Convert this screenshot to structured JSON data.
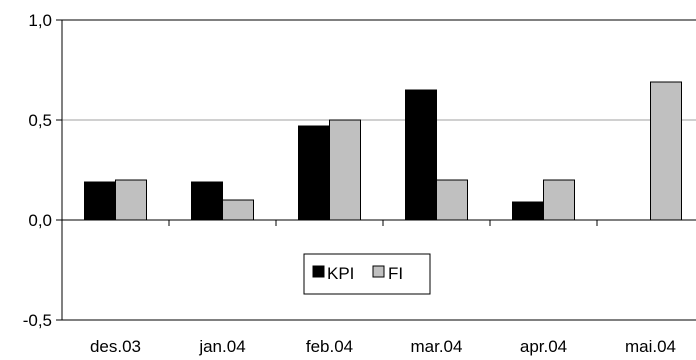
{
  "chart_data": {
    "type": "bar",
    "categories": [
      "des.03",
      "jan.04",
      "feb.04",
      "mar.04",
      "apr.04",
      "mai.04"
    ],
    "series": [
      {
        "name": "KPI",
        "values": [
          0.19,
          0.19,
          0.47,
          0.65,
          0.09,
          null
        ],
        "color": "#000000"
      },
      {
        "name": "FI",
        "values": [
          0.2,
          0.1,
          0.5,
          0.2,
          0.2,
          0.69
        ],
        "color": "#c0c0c0"
      }
    ],
    "title": "",
    "xlabel": "",
    "ylabel": "",
    "ylim": [
      -0.5,
      1.0
    ],
    "y_ticks": [
      {
        "value": -0.5,
        "label": "-0,5"
      },
      {
        "value": 0.0,
        "label": "0,0"
      },
      {
        "value": 0.5,
        "label": "0,5"
      },
      {
        "value": 1.0,
        "label": "1,0"
      }
    ],
    "grid": true,
    "legend": {
      "position": "center-bottom",
      "entries": [
        "KPI",
        "FI"
      ]
    }
  }
}
